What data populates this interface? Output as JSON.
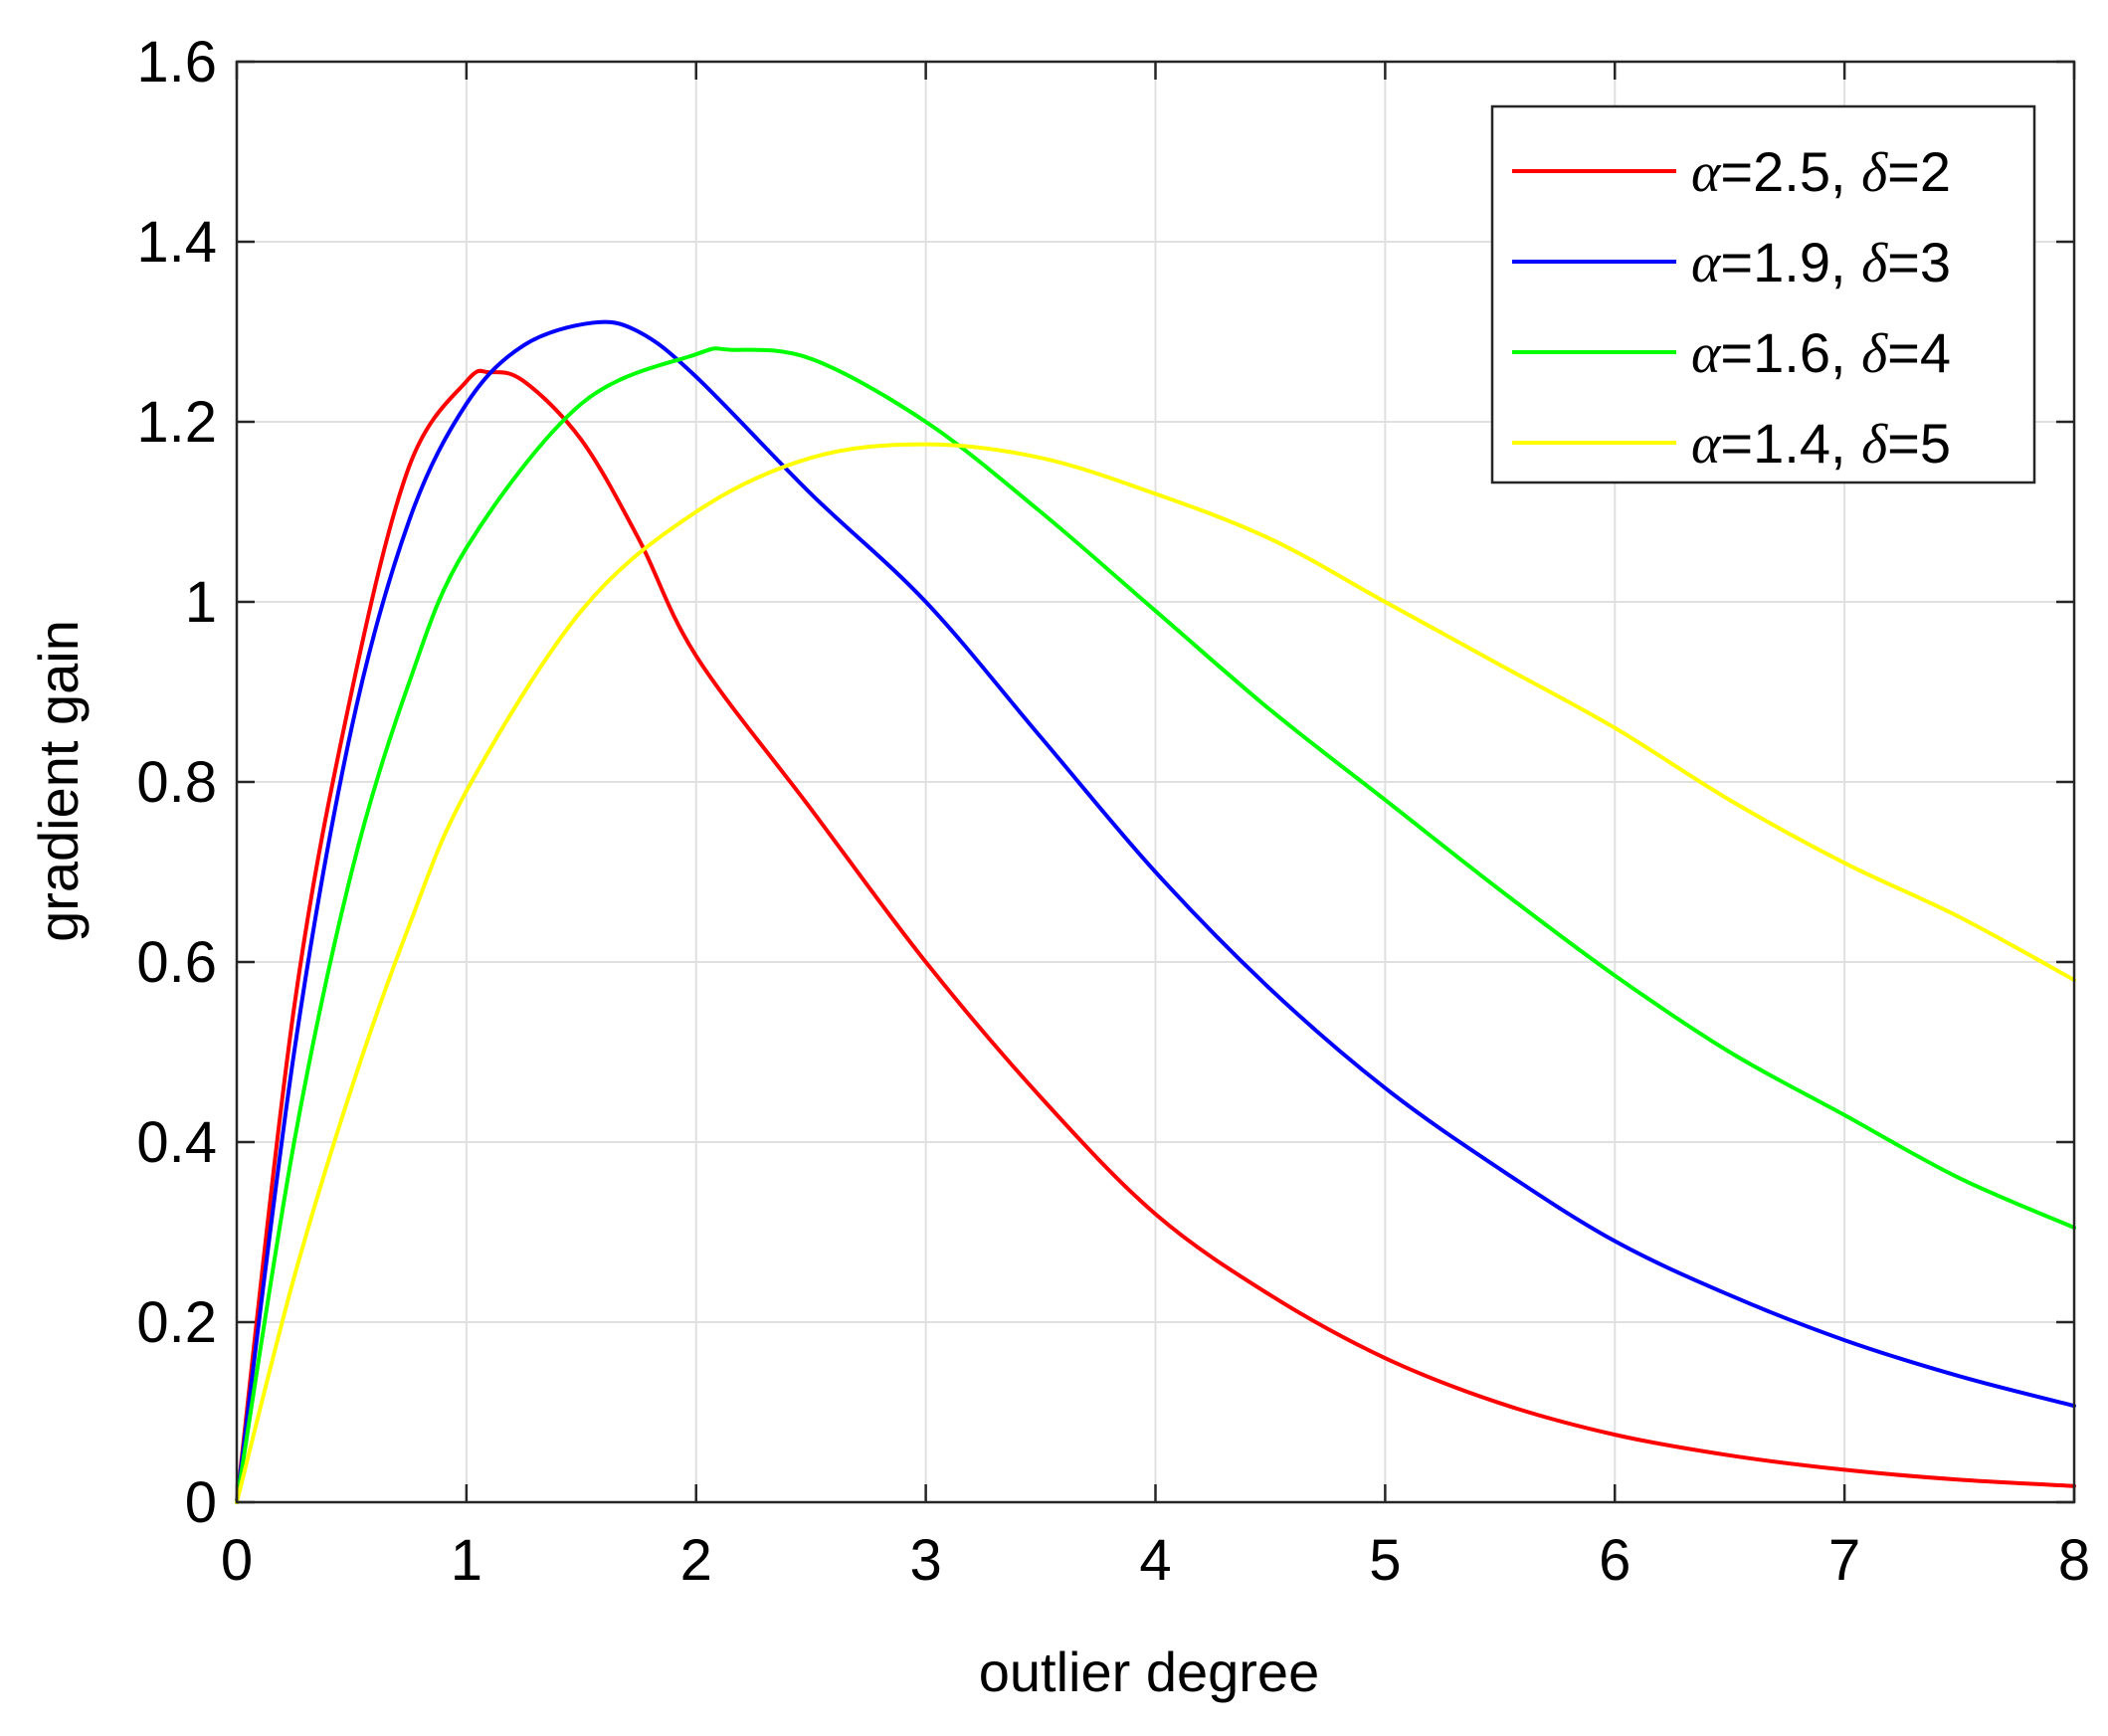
{
  "chart_data": {
    "type": "line",
    "title": "",
    "xlabel": "outlier degree",
    "ylabel": "gradient gain",
    "xlim": [
      0,
      8
    ],
    "ylim": [
      0,
      1.6
    ],
    "xticks": [
      0,
      1,
      2,
      3,
      4,
      5,
      6,
      7,
      8
    ],
    "yticks": [
      0,
      0.2,
      0.4,
      0.6,
      0.8,
      1,
      1.2,
      1.4,
      1.6
    ],
    "xtick_labels": [
      "0",
      "1",
      "2",
      "3",
      "4",
      "5",
      "6",
      "7",
      "8"
    ],
    "ytick_labels": [
      "0",
      "0.2",
      "0.4",
      "0.6",
      "0.8",
      "1",
      "1.2",
      "1.4",
      "1.6"
    ],
    "grid": true,
    "legend_position": "top-right",
    "series": [
      {
        "name": "α=2.5, δ=2",
        "label_alpha": "2.5",
        "label_delta": "2",
        "color": "#ff0000",
        "x": [
          0,
          0.25,
          0.5,
          0.75,
          1,
          1.1,
          1.25,
          1.5,
          1.75,
          2,
          2.5,
          3,
          3.5,
          4,
          4.5,
          5,
          5.5,
          6,
          6.5,
          7,
          7.5,
          8
        ],
        "y": [
          0,
          0.55,
          0.9,
          1.15,
          1.245,
          1.255,
          1.245,
          1.18,
          1.07,
          0.94,
          0.77,
          0.6,
          0.45,
          0.32,
          0.23,
          0.16,
          0.11,
          0.075,
          0.052,
          0.036,
          0.025,
          0.018
        ]
      },
      {
        "name": "α=1.9, δ=3",
        "label_alpha": "1.9",
        "label_delta": "3",
        "color": "#0000ff",
        "x": [
          0,
          0.25,
          0.5,
          0.75,
          1,
          1.25,
          1.55,
          1.75,
          2,
          2.5,
          3,
          3.5,
          4,
          4.5,
          5,
          5.5,
          6,
          6.5,
          7,
          7.5,
          8
        ],
        "y": [
          0,
          0.5,
          0.86,
          1.09,
          1.22,
          1.285,
          1.31,
          1.3,
          1.25,
          1.12,
          1.0,
          0.85,
          0.7,
          0.57,
          0.46,
          0.37,
          0.29,
          0.23,
          0.18,
          0.14,
          0.107
        ]
      },
      {
        "name": "α=1.6, δ=4",
        "label_alpha": "1.6",
        "label_delta": "4",
        "color": "#00ff00",
        "x": [
          0,
          0.25,
          0.5,
          0.75,
          1,
          1.5,
          2,
          2.15,
          2.5,
          3,
          3.5,
          4,
          4.5,
          5,
          5.5,
          6,
          6.5,
          7,
          7.5,
          8
        ],
        "y": [
          0,
          0.4,
          0.7,
          0.91,
          1.06,
          1.22,
          1.275,
          1.28,
          1.27,
          1.2,
          1.1,
          0.99,
          0.88,
          0.78,
          0.68,
          0.585,
          0.5,
          0.43,
          0.36,
          0.305
        ]
      },
      {
        "name": "α=1.4, δ=5",
        "label_alpha": "1.4",
        "label_delta": "5",
        "color": "#ffff00",
        "x": [
          0,
          0.25,
          0.5,
          0.75,
          1,
          1.5,
          2,
          2.5,
          3,
          3.5,
          4,
          4.5,
          5,
          5.5,
          6,
          6.5,
          7,
          7.5,
          8
        ],
        "y": [
          0,
          0.25,
          0.46,
          0.64,
          0.79,
          0.99,
          1.1,
          1.16,
          1.175,
          1.16,
          1.12,
          1.07,
          1.0,
          0.93,
          0.86,
          0.78,
          0.71,
          0.65,
          0.58
        ]
      }
    ]
  }
}
